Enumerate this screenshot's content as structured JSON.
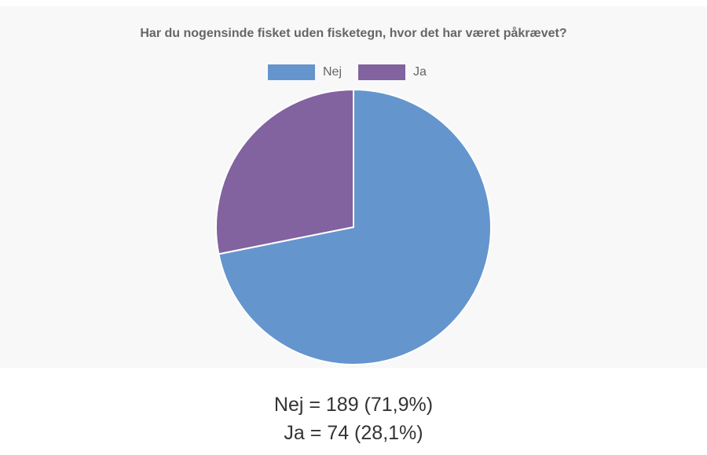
{
  "colors": {
    "panel_background": "#f8f8f8",
    "nej": "#6495cd",
    "ja": "#82629f",
    "slice_border": "#ffffff"
  },
  "chart_data": {
    "type": "pie",
    "title": "Har du nogensinde fisket uden fisketegn, hvor det har været påkrævet?",
    "legend_placement": "top",
    "slices": [
      {
        "label": "Nej",
        "value": 189,
        "percent": "71,9%",
        "color": "#6495cd"
      },
      {
        "label": "Ja",
        "value": 74,
        "percent": "28,1%",
        "color": "#82629f"
      }
    ]
  },
  "legend": {
    "items": [
      {
        "label": "Nej",
        "color": "#6495cd"
      },
      {
        "label": "Ja",
        "color": "#82629f"
      }
    ]
  },
  "summary": {
    "lines": [
      "Nej = 189 (71,9%)",
      "Ja = 74 (28,1%)"
    ]
  }
}
